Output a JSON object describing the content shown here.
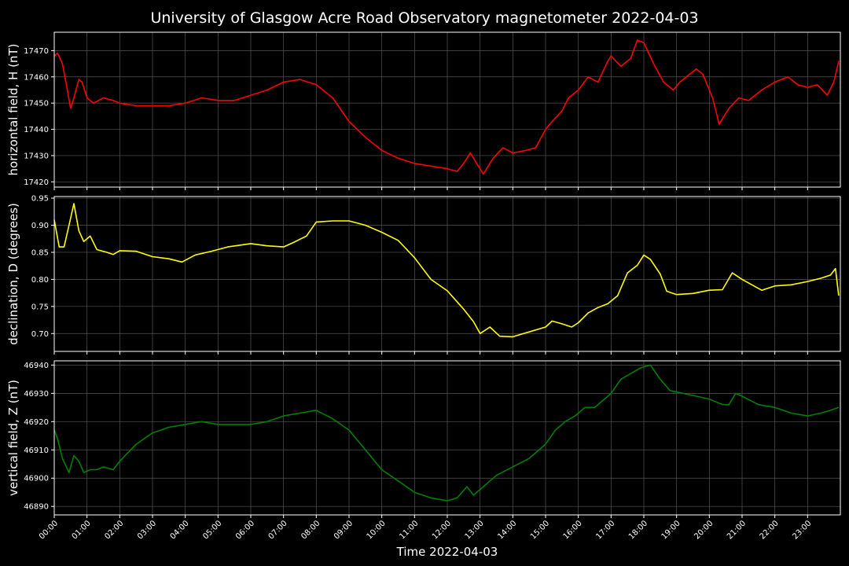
{
  "title": "University of Glasgow Acre Road Observatory magnetometer 2022-04-03",
  "xlabel": "Time 2022-04-03",
  "x_ticks": [
    "00:00",
    "01:00",
    "02:00",
    "03:00",
    "04:00",
    "05:00",
    "06:00",
    "07:00",
    "08:00",
    "09:00",
    "10:00",
    "11:00",
    "12:00",
    "13:00",
    "14:00",
    "15:00",
    "16:00",
    "17:00",
    "18:00",
    "19:00",
    "20:00",
    "21:00",
    "22:00",
    "23:00"
  ],
  "colors": {
    "background": "#000000",
    "grid": "#555555",
    "H": "#ff0000",
    "D": "#ffff00",
    "Z": "#008000"
  },
  "chart_data": [
    {
      "type": "line",
      "ylabel": "horizontal field, H (nT)",
      "ylim": [
        17418,
        17477
      ],
      "yticks": [
        17420,
        17430,
        17440,
        17450,
        17460,
        17470
      ],
      "grid": true,
      "series": [
        {
          "color": "#ff0000",
          "x": [
            0,
            0.1,
            0.25,
            0.4,
            0.5,
            0.6,
            0.75,
            0.85,
            1,
            1.2,
            1.5,
            1.8,
            2,
            2.5,
            3,
            3.5,
            4,
            4.5,
            5,
            5.5,
            6,
            6.5,
            7,
            7.5,
            8,
            8.5,
            9,
            9.5,
            10,
            10.5,
            11,
            11.5,
            12,
            12.3,
            12.5,
            12.7,
            12.9,
            13.1,
            13.4,
            13.7,
            14,
            14.4,
            14.7,
            15,
            15.2,
            15.5,
            15.7,
            16,
            16.3,
            16.6,
            16.9,
            17,
            17.3,
            17.6,
            17.8,
            18,
            18.3,
            18.6,
            18.9,
            19.1,
            19.3,
            19.6,
            19.8,
            20.1,
            20.3,
            20.6,
            20.9,
            21.2,
            21.6,
            22,
            22.4,
            22.7,
            23,
            23.3,
            23.6,
            23.8,
            23.95
          ],
          "values": [
            17468,
            17469,
            17465,
            17455,
            17448,
            17452,
            17459,
            17458,
            17452,
            17450,
            17452,
            17451,
            17450,
            17449,
            17449,
            17449,
            17450,
            17452,
            17451,
            17451,
            17453,
            17455,
            17458,
            17459,
            17457,
            17452,
            17443,
            17437,
            17432,
            17429,
            17427,
            17426,
            17425,
            17424,
            17427,
            17431,
            17427,
            17423,
            17429,
            17433,
            17431,
            17432,
            17433,
            17440,
            17443,
            17447,
            17452,
            17455,
            17460,
            17458,
            17466,
            17468,
            17464,
            17467,
            17474,
            17473,
            17465,
            17458,
            17455,
            17458,
            17460,
            17463,
            17461,
            17452,
            17442,
            17448,
            17452,
            17451,
            17455,
            17458,
            17460,
            17457,
            17456,
            17457,
            17453,
            17458,
            17466
          ]
        }
      ]
    },
    {
      "type": "line",
      "ylabel": "declination, D (degrees)",
      "ylim": [
        0.667,
        0.953
      ],
      "yticks": [
        0.7,
        0.75,
        0.8,
        0.85,
        0.9,
        0.95
      ],
      "grid": true,
      "series": [
        {
          "color": "#ffff00",
          "x": [
            0,
            0.15,
            0.3,
            0.45,
            0.6,
            0.75,
            0.9,
            1.1,
            1.3,
            1.6,
            1.8,
            2,
            2.5,
            3,
            3.5,
            3.9,
            4.3,
            4.8,
            5.3,
            6,
            6.5,
            7,
            7.3,
            7.7,
            8,
            8.5,
            9,
            9.5,
            10,
            10.5,
            11,
            11.5,
            12,
            12.5,
            12.8,
            13,
            13.3,
            13.6,
            14,
            14.5,
            15,
            15.2,
            15.5,
            15.8,
            16,
            16.3,
            16.6,
            16.9,
            17.2,
            17.5,
            17.8,
            18,
            18.2,
            18.5,
            18.7,
            19,
            19.5,
            20,
            20.4,
            20.7,
            21,
            21.3,
            21.6,
            22,
            22.5,
            23,
            23.4,
            23.7,
            23.85,
            23.95
          ],
          "values": [
            0.91,
            0.86,
            0.86,
            0.9,
            0.94,
            0.89,
            0.87,
            0.88,
            0.855,
            0.85,
            0.846,
            0.853,
            0.852,
            0.842,
            0.838,
            0.832,
            0.845,
            0.852,
            0.86,
            0.866,
            0.862,
            0.86,
            0.868,
            0.88,
            0.906,
            0.908,
            0.908,
            0.9,
            0.887,
            0.872,
            0.84,
            0.8,
            0.779,
            0.745,
            0.722,
            0.7,
            0.712,
            0.695,
            0.694,
            0.703,
            0.712,
            0.723,
            0.718,
            0.712,
            0.72,
            0.738,
            0.748,
            0.755,
            0.77,
            0.812,
            0.826,
            0.845,
            0.837,
            0.81,
            0.778,
            0.772,
            0.774,
            0.78,
            0.781,
            0.812,
            0.8,
            0.79,
            0.78,
            0.788,
            0.79,
            0.796,
            0.802,
            0.808,
            0.82,
            0.77
          ]
        }
      ]
    },
    {
      "type": "line",
      "ylabel": "vertical field, Z (nT)",
      "ylim": [
        46887,
        46941.5
      ],
      "yticks": [
        46890,
        46900,
        46910,
        46920,
        46930,
        46940
      ],
      "grid": true,
      "series": [
        {
          "color": "#008000",
          "x": [
            0,
            0.1,
            0.25,
            0.45,
            0.6,
            0.75,
            0.9,
            1.1,
            1.3,
            1.5,
            1.8,
            2,
            2.5,
            3,
            3.5,
            4,
            4.5,
            5,
            5.5,
            6,
            6.5,
            7,
            7.5,
            8,
            8.5,
            9,
            9.5,
            10,
            10.5,
            11,
            11.5,
            12,
            12.3,
            12.6,
            12.8,
            13,
            13.5,
            14,
            14.5,
            15,
            15.3,
            15.6,
            15.9,
            16.2,
            16.5,
            16.8,
            17,
            17.3,
            17.6,
            17.9,
            18.2,
            18.5,
            18.8,
            19.2,
            19.6,
            20,
            20.4,
            20.6,
            20.8,
            21,
            21.5,
            22,
            22.5,
            23,
            23.4,
            23.7,
            23.95
          ],
          "values": [
            46917,
            46914,
            46907,
            46902,
            46908,
            46906,
            46902,
            46903,
            46903,
            46904,
            46903,
            46906,
            46912,
            46916,
            46918,
            46919,
            46920,
            46919,
            46919,
            46919,
            46920,
            46922,
            46923,
            46924,
            46921,
            46917,
            46910,
            46903,
            46899,
            46895,
            46893,
            46892,
            46893,
            46897,
            46894,
            46896,
            46901,
            46904,
            46907,
            46912,
            46917,
            46920,
            46922,
            46925,
            46925,
            46928,
            46930,
            46935,
            46937,
            46939,
            46940,
            46935,
            46931,
            46930,
            46929,
            46928,
            46926,
            46926,
            46930,
            46929,
            46926,
            46925,
            46923,
            46922,
            46923,
            46924,
            46925
          ]
        }
      ]
    }
  ]
}
